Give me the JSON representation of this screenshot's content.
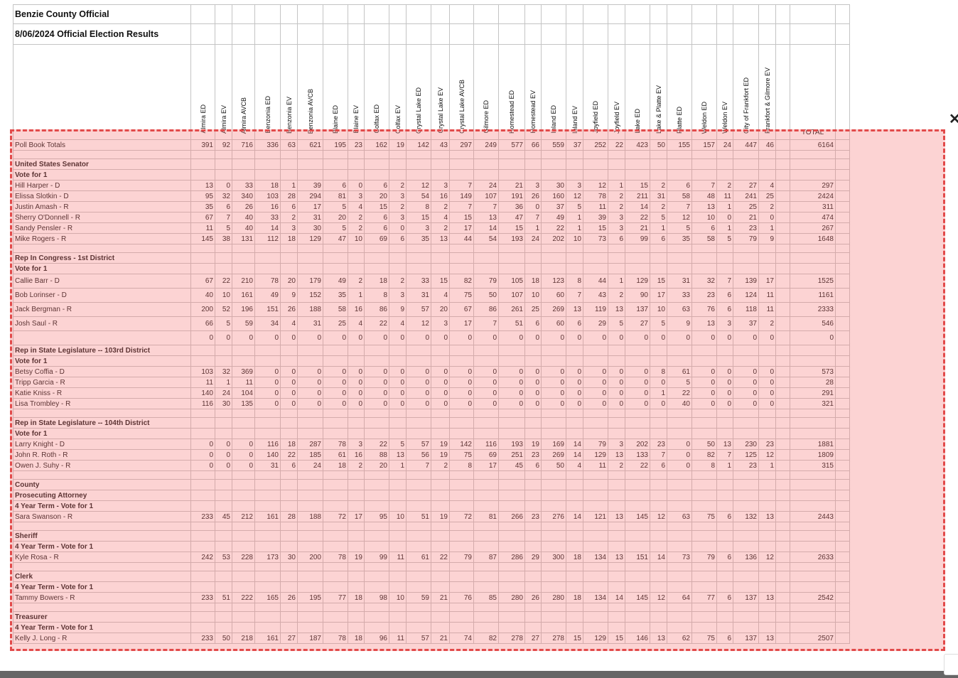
{
  "title_line1": "Benzie County Official",
  "title_line2": "8/06/2024 Official Election Results",
  "columns": [
    "Almira ED",
    "Almira EV",
    "Almira AVCB",
    "Benzonia ED",
    "Benzonia EV",
    "Benzonia AVCB",
    "Blaine ED",
    "Blaine EV",
    "Colfax ED",
    "Colfax EV",
    "Crystal Lake ED",
    "Crystal Lake EV",
    "Crystal Lake AVCB",
    "Gilmore ED",
    "Homestead ED",
    "Homestead EV",
    "Inland ED",
    "Inland EV",
    "Joyfield ED",
    "Joyfield EV",
    "Lake ED",
    "Lake & Platte EV",
    "Platte ED",
    "Weldon ED",
    "Weldon EV",
    "City of Frankfort ED",
    "Frankfort & Gilmore EV"
  ],
  "total_label": "TOTAL",
  "rows": [
    {
      "type": "data",
      "label": "Poll Book Totals",
      "values": [
        "391",
        "92",
        "716",
        "336",
        "63",
        "621",
        "195",
        "23",
        "162",
        "19",
        "142",
        "43",
        "297",
        "249",
        "577",
        "66",
        "559",
        "37",
        "252",
        "22",
        "423",
        "50",
        "155",
        "157",
        "24",
        "447",
        "46"
      ],
      "total": "6164"
    },
    {
      "type": "blank"
    },
    {
      "type": "head",
      "label": "United States Senator"
    },
    {
      "type": "head",
      "label": "Vote for 1"
    },
    {
      "type": "data",
      "label": "Hill Harper - D",
      "values": [
        "13",
        "0",
        "33",
        "18",
        "1",
        "39",
        "6",
        "0",
        "6",
        "2",
        "12",
        "3",
        "7",
        "24",
        "21",
        "3",
        "30",
        "3",
        "12",
        "1",
        "15",
        "2",
        "6",
        "7",
        "2",
        "27",
        "4"
      ],
      "total": "297"
    },
    {
      "type": "data",
      "label": "Elissa Slotkin - D",
      "values": [
        "95",
        "32",
        "340",
        "103",
        "28",
        "294",
        "81",
        "3",
        "20",
        "3",
        "54",
        "16",
        "149",
        "107",
        "191",
        "26",
        "160",
        "12",
        "78",
        "2",
        "211",
        "31",
        "58",
        "48",
        "11",
        "241",
        "25"
      ],
      "total": "2424"
    },
    {
      "type": "data",
      "label": "Justin Amash - R",
      "values": [
        "35",
        "6",
        "26",
        "16",
        "6",
        "17",
        "5",
        "4",
        "15",
        "2",
        "8",
        "2",
        "7",
        "7",
        "36",
        "0",
        "37",
        "5",
        "11",
        "2",
        "14",
        "2",
        "7",
        "13",
        "1",
        "25",
        "2"
      ],
      "total": "311"
    },
    {
      "type": "data",
      "label": "Sherry O'Donnell - R",
      "values": [
        "67",
        "7",
        "40",
        "33",
        "2",
        "31",
        "20",
        "2",
        "6",
        "3",
        "15",
        "4",
        "15",
        "13",
        "47",
        "7",
        "49",
        "1",
        "39",
        "3",
        "22",
        "5",
        "12",
        "10",
        "0",
        "21",
        "0"
      ],
      "total": "474"
    },
    {
      "type": "data",
      "label": "Sandy Pensler - R",
      "values": [
        "11",
        "5",
        "40",
        "14",
        "3",
        "30",
        "5",
        "2",
        "6",
        "0",
        "3",
        "2",
        "17",
        "14",
        "15",
        "1",
        "22",
        "1",
        "15",
        "3",
        "21",
        "1",
        "5",
        "6",
        "1",
        "23",
        "1"
      ],
      "total": "267"
    },
    {
      "type": "data",
      "label": "Mike Rogers - R",
      "values": [
        "145",
        "38",
        "131",
        "112",
        "18",
        "129",
        "47",
        "10",
        "69",
        "6",
        "35",
        "13",
        "44",
        "54",
        "193",
        "24",
        "202",
        "10",
        "73",
        "6",
        "99",
        "6",
        "35",
        "58",
        "5",
        "79",
        "9"
      ],
      "total": "1648"
    },
    {
      "type": "blank"
    },
    {
      "type": "head",
      "label": "Rep In Congress - 1st District"
    },
    {
      "type": "head",
      "label": "Vote for 1"
    },
    {
      "type": "data",
      "tall": true,
      "label": "Callie Barr - D",
      "values": [
        "67",
        "22",
        "210",
        "78",
        "20",
        "179",
        "49",
        "2",
        "18",
        "2",
        "33",
        "15",
        "82",
        "79",
        "105",
        "18",
        "123",
        "8",
        "44",
        "1",
        "129",
        "15",
        "31",
        "32",
        "7",
        "139",
        "17"
      ],
      "total": "1525"
    },
    {
      "type": "data",
      "tall": true,
      "label": "Bob Lorinser - D",
      "values": [
        "40",
        "10",
        "161",
        "49",
        "9",
        "152",
        "35",
        "1",
        "8",
        "3",
        "31",
        "4",
        "75",
        "50",
        "107",
        "10",
        "60",
        "7",
        "43",
        "2",
        "90",
        "17",
        "33",
        "23",
        "6",
        "124",
        "11"
      ],
      "total": "1161"
    },
    {
      "type": "data",
      "tall": true,
      "label": "Jack Bergman - R",
      "values": [
        "200",
        "52",
        "196",
        "151",
        "26",
        "188",
        "58",
        "16",
        "86",
        "9",
        "57",
        "20",
        "67",
        "86",
        "261",
        "25",
        "269",
        "13",
        "119",
        "13",
        "137",
        "10",
        "63",
        "76",
        "6",
        "118",
        "11"
      ],
      "total": "2333"
    },
    {
      "type": "data",
      "tall": true,
      "label": "Josh Saul - R",
      "values": [
        "66",
        "5",
        "59",
        "34",
        "4",
        "31",
        "25",
        "4",
        "22",
        "4",
        "12",
        "3",
        "17",
        "7",
        "51",
        "6",
        "60",
        "6",
        "29",
        "5",
        "27",
        "5",
        "9",
        "13",
        "3",
        "37",
        "2"
      ],
      "total": "546"
    },
    {
      "type": "data",
      "tall": true,
      "label": "",
      "values": [
        "0",
        "0",
        "0",
        "0",
        "0",
        "0",
        "0",
        "0",
        "0",
        "0",
        "0",
        "0",
        "0",
        "0",
        "0",
        "0",
        "0",
        "0",
        "0",
        "0",
        "0",
        "0",
        "0",
        "0",
        "0",
        "0",
        "0"
      ],
      "total": "0"
    },
    {
      "type": "head",
      "label": "Rep in State Legislature -- 103rd District"
    },
    {
      "type": "head",
      "label": "Vote for 1"
    },
    {
      "type": "data",
      "label": "Betsy Coffia - D",
      "values": [
        "103",
        "32",
        "369",
        "0",
        "0",
        "0",
        "0",
        "0",
        "0",
        "0",
        "0",
        "0",
        "0",
        "0",
        "0",
        "0",
        "0",
        "0",
        "0",
        "0",
        "0",
        "8",
        "61",
        "0",
        "0",
        "0",
        "0"
      ],
      "total": "573"
    },
    {
      "type": "data",
      "label": "Tripp Garcia - R",
      "values": [
        "11",
        "1",
        "11",
        "0",
        "0",
        "0",
        "0",
        "0",
        "0",
        "0",
        "0",
        "0",
        "0",
        "0",
        "0",
        "0",
        "0",
        "0",
        "0",
        "0",
        "0",
        "0",
        "5",
        "0",
        "0",
        "0",
        "0"
      ],
      "total": "28"
    },
    {
      "type": "data",
      "label": "Katie Kniss - R",
      "values": [
        "140",
        "24",
        "104",
        "0",
        "0",
        "0",
        "0",
        "0",
        "0",
        "0",
        "0",
        "0",
        "0",
        "0",
        "0",
        "0",
        "0",
        "0",
        "0",
        "0",
        "0",
        "1",
        "22",
        "0",
        "0",
        "0",
        "0"
      ],
      "total": "291"
    },
    {
      "type": "data",
      "label": "Lisa Trombley - R",
      "values": [
        "116",
        "30",
        "135",
        "0",
        "0",
        "0",
        "0",
        "0",
        "0",
        "0",
        "0",
        "0",
        "0",
        "0",
        "0",
        "0",
        "0",
        "0",
        "0",
        "0",
        "0",
        "0",
        "40",
        "0",
        "0",
        "0",
        "0"
      ],
      "total": "321"
    },
    {
      "type": "blank"
    },
    {
      "type": "head",
      "label": "Rep in State Legislature -- 104th District"
    },
    {
      "type": "head",
      "label": "Vote for 1"
    },
    {
      "type": "data",
      "label": "Larry Knight - D",
      "values": [
        "0",
        "0",
        "0",
        "116",
        "18",
        "287",
        "78",
        "3",
        "22",
        "5",
        "57",
        "19",
        "142",
        "116",
        "193",
        "19",
        "169",
        "14",
        "79",
        "3",
        "202",
        "23",
        "0",
        "50",
        "13",
        "230",
        "23"
      ],
      "total": "1881"
    },
    {
      "type": "data",
      "label": "John R. Roth - R",
      "values": [
        "0",
        "0",
        "0",
        "140",
        "22",
        "185",
        "61",
        "16",
        "88",
        "13",
        "56",
        "19",
        "75",
        "69",
        "251",
        "23",
        "269",
        "14",
        "129",
        "13",
        "133",
        "7",
        "0",
        "82",
        "7",
        "125",
        "12"
      ],
      "total": "1809"
    },
    {
      "type": "data",
      "label": "Owen J. Suhy - R",
      "values": [
        "0",
        "0",
        "0",
        "31",
        "6",
        "24",
        "18",
        "2",
        "20",
        "1",
        "7",
        "2",
        "8",
        "17",
        "45",
        "6",
        "50",
        "4",
        "11",
        "2",
        "22",
        "6",
        "0",
        "8",
        "1",
        "23",
        "1"
      ],
      "total": "315"
    },
    {
      "type": "blank"
    },
    {
      "type": "head",
      "label": "County"
    },
    {
      "type": "head",
      "label": "Prosecuting Attorney"
    },
    {
      "type": "head",
      "label": "4 Year Term - Vote for 1"
    },
    {
      "type": "data",
      "label": "Sara Swanson - R",
      "values": [
        "233",
        "45",
        "212",
        "161",
        "28",
        "188",
        "72",
        "17",
        "95",
        "10",
        "51",
        "19",
        "72",
        "81",
        "266",
        "23",
        "276",
        "14",
        "121",
        "13",
        "145",
        "12",
        "63",
        "75",
        "6",
        "132",
        "13"
      ],
      "total": "2443"
    },
    {
      "type": "blank"
    },
    {
      "type": "head",
      "label": "Sheriff"
    },
    {
      "type": "head",
      "label": "4 Year Term - Vote for 1"
    },
    {
      "type": "data",
      "label": "Kyle Rosa - R",
      "values": [
        "242",
        "53",
        "228",
        "173",
        "30",
        "200",
        "78",
        "19",
        "99",
        "11",
        "61",
        "22",
        "79",
        "87",
        "286",
        "29",
        "300",
        "18",
        "134",
        "13",
        "151",
        "14",
        "73",
        "79",
        "6",
        "136",
        "12"
      ],
      "total": "2633"
    },
    {
      "type": "blank"
    },
    {
      "type": "head",
      "label": "Clerk"
    },
    {
      "type": "head",
      "label": "4 Year Term - Vote for 1"
    },
    {
      "type": "data",
      "label": "Tammy Bowers - R",
      "values": [
        "233",
        "51",
        "222",
        "165",
        "26",
        "195",
        "77",
        "18",
        "98",
        "10",
        "59",
        "21",
        "76",
        "85",
        "280",
        "26",
        "280",
        "18",
        "134",
        "14",
        "145",
        "12",
        "64",
        "77",
        "6",
        "137",
        "13"
      ],
      "total": "2542"
    },
    {
      "type": "blank"
    },
    {
      "type": "head",
      "label": "Treasurer"
    },
    {
      "type": "head",
      "label": "4 Year Term - Vote for 1"
    },
    {
      "type": "data",
      "label": "Kelly J. Long - R",
      "values": [
        "233",
        "50",
        "218",
        "161",
        "27",
        "187",
        "78",
        "18",
        "96",
        "11",
        "57",
        "21",
        "74",
        "82",
        "278",
        "27",
        "278",
        "15",
        "129",
        "15",
        "146",
        "13",
        "62",
        "75",
        "6",
        "137",
        "13"
      ],
      "total": "2507"
    }
  ],
  "close_glyph": "✕"
}
